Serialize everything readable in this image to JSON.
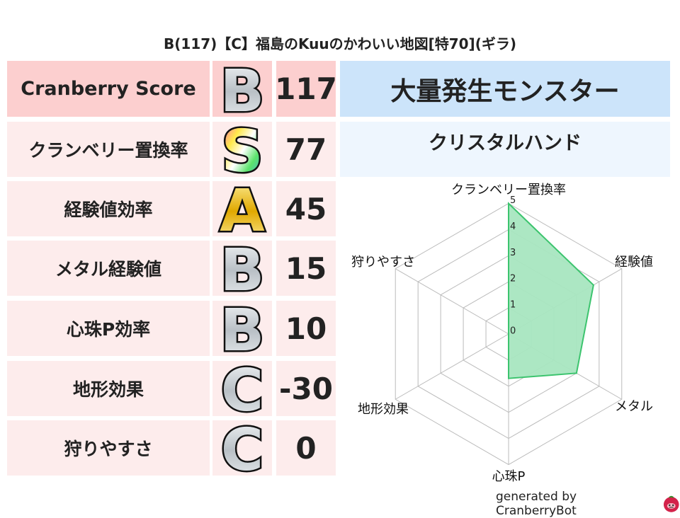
{
  "title": "B(117)【C】福島のKuuのかわいい地図[特70](ギラ)",
  "header": {
    "label": "Cranberry Score",
    "grade": "B",
    "score": "117"
  },
  "rows": [
    {
      "label": "クランベリー置換率",
      "grade": "S",
      "score": "77"
    },
    {
      "label": "経験値効率",
      "grade": "A",
      "score": "45"
    },
    {
      "label": "メタル経験値",
      "grade": "B",
      "score": "15"
    },
    {
      "label": "心珠P効率",
      "grade": "B",
      "score": "10"
    },
    {
      "label": "地形効果",
      "grade": "C",
      "score": "-30"
    },
    {
      "label": "狩りやすさ",
      "grade": "C",
      "score": "0"
    }
  ],
  "monster": {
    "title": "大量発生モンスター",
    "name": "クリスタルハンド"
  },
  "chart_data": {
    "type": "radar",
    "axes": [
      "クランベリー置換率",
      "経験値",
      "メタル",
      "心珠P",
      "地形効果",
      "狩りやすさ"
    ],
    "values": [
      5,
      3.75,
      3,
      1.7,
      0,
      0
    ],
    "rlim": [
      0,
      5
    ],
    "ticks": [
      "0",
      "1",
      "2",
      "3",
      "4",
      "5"
    ],
    "grid": true,
    "colors": {
      "line": "#3cc46e",
      "fill": "#a8e6c0",
      "grid": "#bbbbbb"
    }
  },
  "footer": {
    "text": "generated by CranberryBot",
    "icon": "cranberry-mascot-icon"
  }
}
